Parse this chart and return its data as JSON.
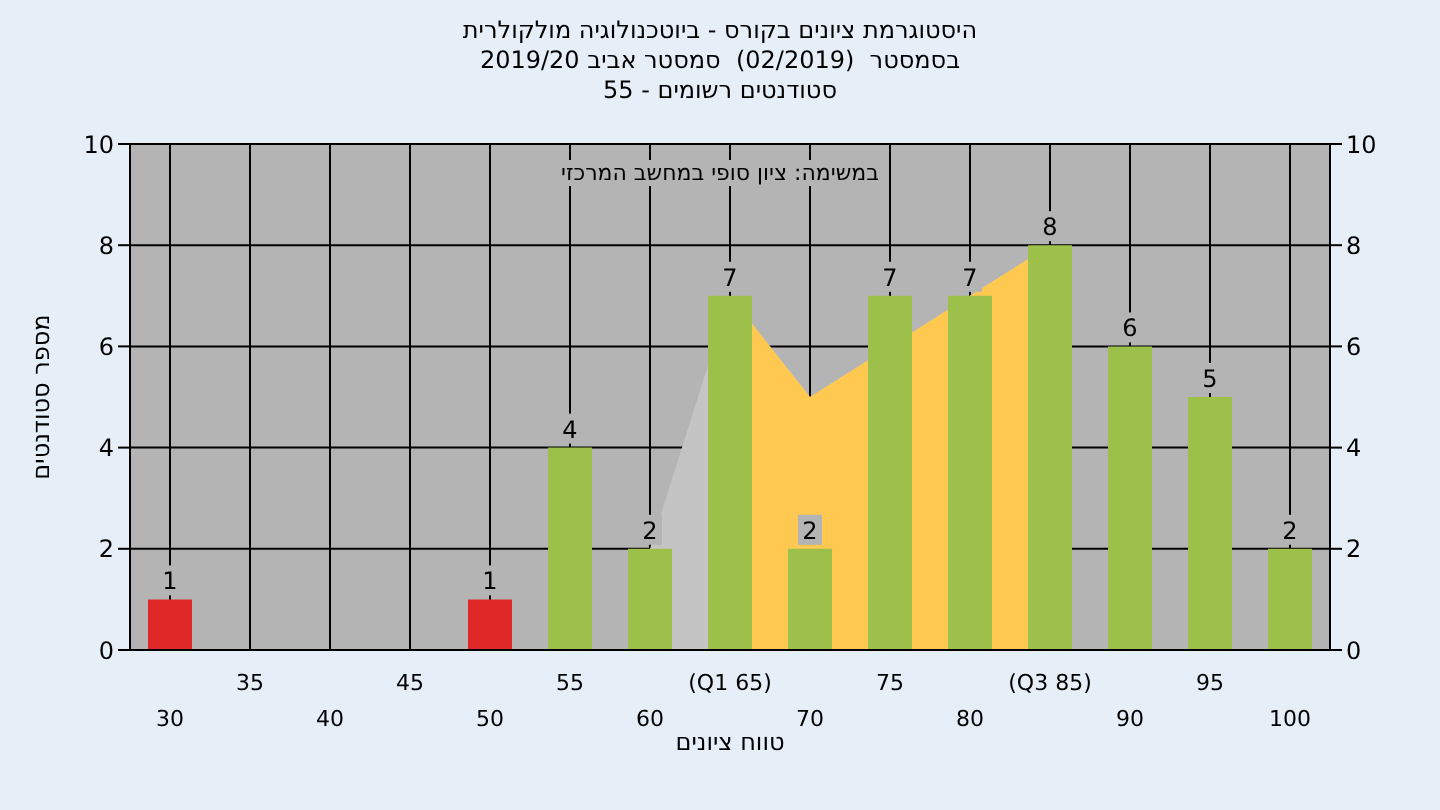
{
  "chart_data": {
    "type": "bar",
    "title": "היסטוגרמת ציונים בקורס - ביוטכנולוגיה מולקולרית",
    "subtitle": "בסמסטר  (02/2019)  סמסטר אביב 2019/20\nסטודנטים רשומים - 55",
    "xlabel": "טווח ציונים",
    "ylabel": "מספר סטודנטים",
    "annotations": [
      "במשימה: ציון סופי במחשב המרכזי"
    ],
    "categories": [
      "30",
      "35",
      "40",
      "45",
      "50",
      "55",
      "60",
      "(Q1 65)",
      "70",
      "75",
      "80",
      "(Q3 85)",
      "90",
      "95",
      "100"
    ],
    "series": [
      {
        "type": "area",
        "color": "#c4c4c4",
        "values": [
          null,
          null,
          null,
          null,
          null,
          null,
          2,
          7,
          5,
          null,
          7,
          8,
          null,
          null,
          null
        ]
      },
      {
        "type": "area",
        "color": "#ffc850",
        "values": [
          null,
          null,
          null,
          null,
          null,
          null,
          null,
          7,
          5,
          null,
          7,
          8,
          null,
          null,
          null
        ]
      },
      {
        "colors": [
          "#e02828",
          "#9cc04a",
          "#9cc04a",
          "#9cc04a",
          "#e02828",
          "#9cc04a",
          "#9cc04a",
          "#9cc04a",
          "#9cc04a",
          "#9cc04a",
          "#9cc04a",
          "#9cc04a",
          "#9cc04a",
          "#9cc04a",
          "#9cc04a"
        ],
        "values": [
          1,
          0,
          0,
          0,
          1,
          4,
          2,
          7,
          2,
          7,
          7,
          8,
          6,
          5,
          2
        ],
        "value_labels": [
          "1",
          null,
          null,
          null,
          "1",
          "4",
          "2",
          "7",
          "2",
          "7",
          "7",
          "8",
          "6",
          "5",
          "2"
        ]
      }
    ],
    "ylim": [
      0,
      10
    ],
    "yticks": [
      0,
      2,
      4,
      6,
      8,
      10
    ],
    "y2lim": [
      0,
      10
    ],
    "y2ticks": [
      0,
      2,
      4,
      6,
      8,
      10
    ],
    "grid": true
  }
}
